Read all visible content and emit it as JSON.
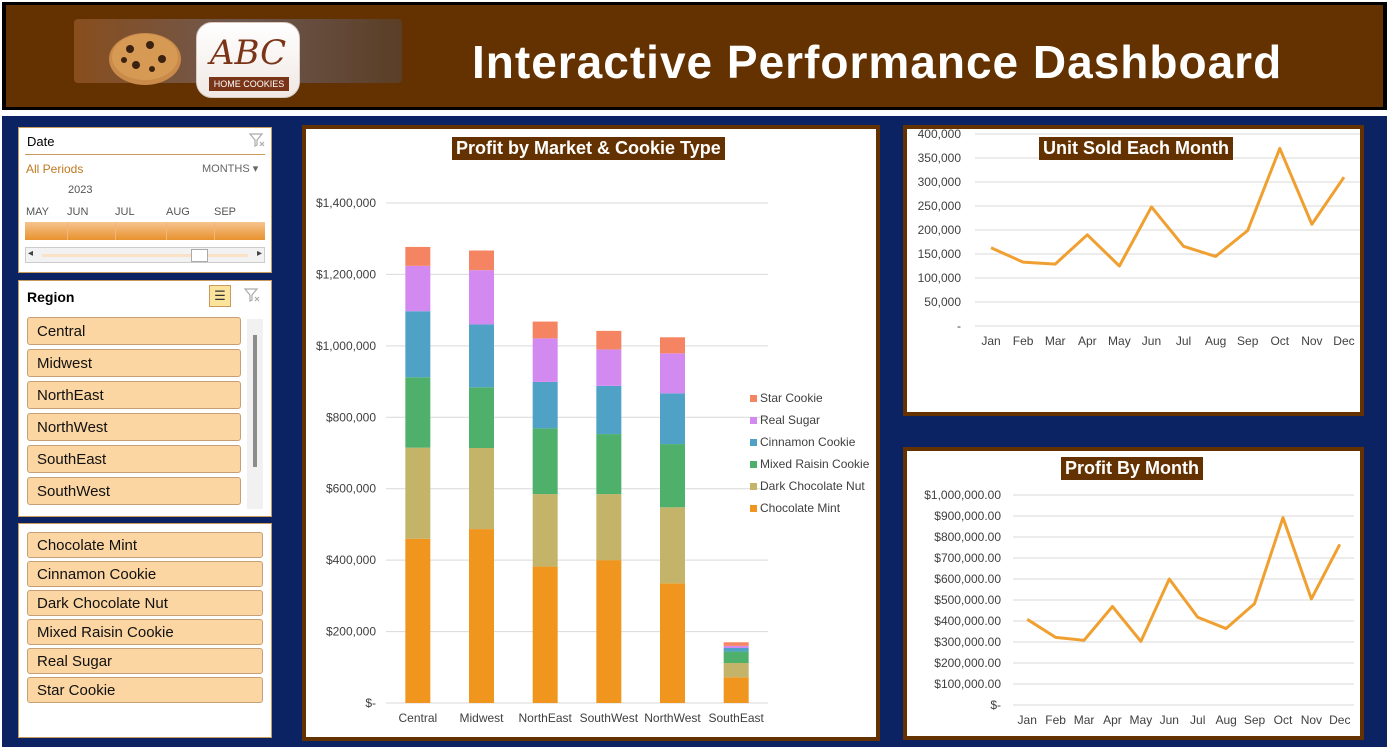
{
  "header": {
    "title": "Interactive Performance Dashboard",
    "logo_text": "ABC",
    "logo_subtext": "HOME COOKIES"
  },
  "date_slicer": {
    "title": "Date",
    "selection": "All Periods",
    "level": "MONTHS",
    "year": "2023",
    "months": [
      "MAY",
      "JUN",
      "JUL",
      "AUG",
      "SEP"
    ]
  },
  "region_slicer": {
    "title": "Region",
    "items": [
      "Central",
      "Midwest",
      "NorthEast",
      "NorthWest",
      "SouthEast",
      "SouthWest"
    ]
  },
  "cookie_slicer": {
    "items": [
      "Chocolate Mint",
      "Cinnamon Cookie",
      "Dark Chocolate Nut",
      "Mixed Raisin Cookie",
      "Real Sugar",
      "Star Cookie"
    ]
  },
  "colors": {
    "header_brown": "#633200",
    "navy": "#0b2263",
    "slicer_item": "#fbd5a2",
    "line": "#f0a030",
    "series": [
      "#f0961e",
      "#c3b46a",
      "#4fb06c",
      "#4fa1c6",
      "#d38af0",
      "#f58562"
    ]
  },
  "chart_data": [
    {
      "type": "bar",
      "stacked": true,
      "title": "Profit by Market & Cookie Type",
      "categories": [
        "Central",
        "Midwest",
        "NorthEast",
        "SouthWest",
        "NorthWest",
        "SouthEast"
      ],
      "series": [
        {
          "name": "Chocolate Mint",
          "values": [
            460000,
            487000,
            382000,
            400000,
            335000,
            72000
          ]
        },
        {
          "name": "Dark Chocolate Nut",
          "values": [
            255000,
            227000,
            203000,
            185000,
            213000,
            40000
          ]
        },
        {
          "name": "Mixed Raisin Cookie",
          "values": [
            197000,
            170000,
            184000,
            168000,
            177000,
            32000
          ]
        },
        {
          "name": "Cinnamon Cookie",
          "values": [
            185000,
            176000,
            130000,
            135000,
            142000,
            10000
          ]
        },
        {
          "name": "Real Sugar",
          "values": [
            127000,
            152000,
            122000,
            102000,
            112000,
            6000
          ]
        },
        {
          "name": "Star Cookie",
          "values": [
            53000,
            55000,
            47000,
            52000,
            45000,
            10000
          ]
        }
      ],
      "legend_order": [
        "Star Cookie",
        "Real Sugar",
        "Cinnamon Cookie",
        "Mixed Raisin Cookie",
        "Dark Chocolate Nut",
        "Chocolate Mint"
      ],
      "yticks": [
        "$-",
        "$200,000",
        "$400,000",
        "$600,000",
        "$800,000",
        "$1,000,000",
        "$1,200,000",
        "$1,400,000"
      ],
      "ylim": [
        0,
        1400000
      ],
      "legend": "right",
      "grid": true
    },
    {
      "type": "line",
      "title": "Unit Sold Each Month",
      "categories": [
        "Jan",
        "Feb",
        "Mar",
        "Apr",
        "May",
        "Jun",
        "Jul",
        "Aug",
        "Sep",
        "Oct",
        "Nov",
        "Dec"
      ],
      "values": [
        163000,
        133000,
        129000,
        190000,
        125000,
        248000,
        166000,
        145000,
        199000,
        370000,
        212000,
        310000
      ],
      "yticks": [
        "-",
        "50,000",
        "100,000",
        "150,000",
        "200,000",
        "250,000",
        "300,000",
        "350,000",
        "400,000"
      ],
      "ylim": [
        0,
        400000
      ],
      "grid": true
    },
    {
      "type": "line",
      "title": "Profit By Month",
      "categories": [
        "Jan",
        "Feb",
        "Mar",
        "Apr",
        "May",
        "Jun",
        "Jul",
        "Aug",
        "Sep",
        "Oct",
        "Nov",
        "Dec"
      ],
      "values": [
        408000,
        322000,
        308000,
        469000,
        303000,
        600000,
        418000,
        364000,
        483000,
        892000,
        505000,
        765000
      ],
      "yticks": [
        "$-",
        "$100,000.00",
        "$200,000.00",
        "$300,000.00",
        "$400,000.00",
        "$500,000.00",
        "$600,000.00",
        "$700,000.00",
        "$800,000.00",
        "$900,000.00",
        "$1,000,000.00"
      ],
      "ylim": [
        0,
        1000000
      ],
      "grid": true
    }
  ]
}
